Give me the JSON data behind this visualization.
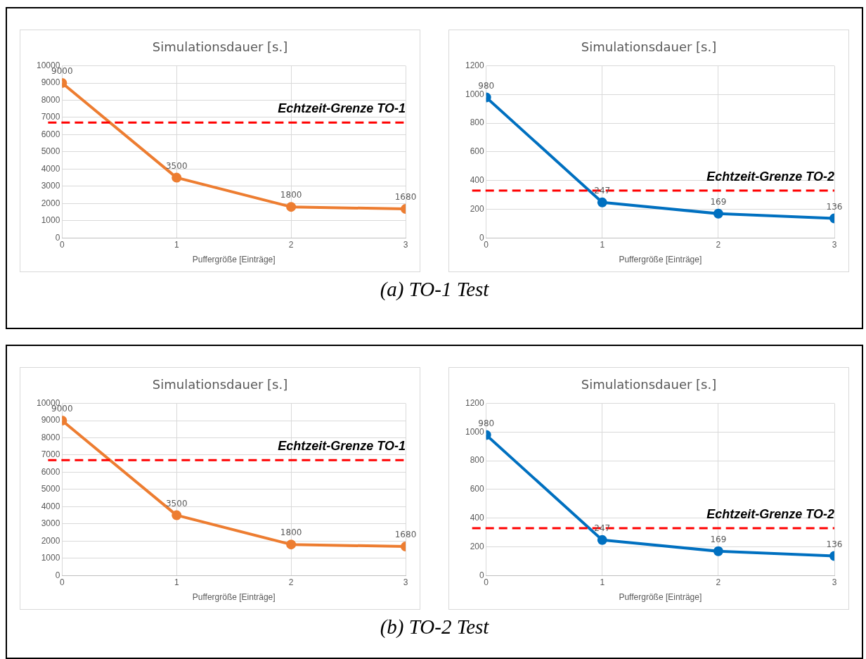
{
  "chart_data": [
    {
      "type": "line",
      "title": "Simulationsdauer [s.]",
      "xlabel": "Puffergröße [Einträge]",
      "x": [
        0,
        1,
        2,
        3
      ],
      "xlim": [
        0,
        3
      ],
      "xticks": [
        0,
        1,
        2,
        3
      ],
      "ylim": [
        0,
        10000
      ],
      "yticks": [
        0,
        1000,
        2000,
        3000,
        4000,
        5000,
        6000,
        7000,
        8000,
        9000,
        10000
      ],
      "grid": true,
      "marker": "circle",
      "data_labels": true,
      "series": [
        {
          "color": "#ed7d31",
          "values": [
            9000,
            3500,
            1800,
            1680
          ]
        }
      ],
      "ref_lines": [
        {
          "axis": "y",
          "value": 6700,
          "label": "Echtzeit-Grenze TO-1",
          "color": "#ff0000",
          "line_style": "dashed"
        }
      ],
      "annotations": [
        "(a) TO-1 Test"
      ]
    },
    {
      "type": "line",
      "title": "Simulationsdauer [s.]",
      "xlabel": "Puffergröße [Einträge]",
      "x": [
        0,
        1,
        2,
        3
      ],
      "xlim": [
        0,
        3
      ],
      "xticks": [
        0,
        1,
        2,
        3
      ],
      "ylim": [
        0,
        1200
      ],
      "yticks": [
        0,
        200,
        400,
        600,
        800,
        1000,
        1200
      ],
      "grid": true,
      "marker": "circle",
      "data_labels": true,
      "series": [
        {
          "color": "#0070c0",
          "values": [
            980,
            247,
            169,
            136
          ]
        }
      ],
      "ref_lines": [
        {
          "axis": "y",
          "value": 330,
          "label": "Echtzeit-Grenze TO-2",
          "color": "#ff0000",
          "line_style": "dashed"
        }
      ]
    },
    {
      "type": "line",
      "title": "Simulationsdauer [s.]",
      "xlabel": "Puffergröße [Einträge]",
      "x": [
        0,
        1,
        2,
        3
      ],
      "xlim": [
        0,
        3
      ],
      "xticks": [
        0,
        1,
        2,
        3
      ],
      "ylim": [
        0,
        10000
      ],
      "yticks": [
        0,
        1000,
        2000,
        3000,
        4000,
        5000,
        6000,
        7000,
        8000,
        9000,
        10000
      ],
      "grid": true,
      "marker": "circle",
      "data_labels": true,
      "series": [
        {
          "color": "#ed7d31",
          "values": [
            9000,
            3500,
            1800,
            1680
          ]
        }
      ],
      "ref_lines": [
        {
          "axis": "y",
          "value": 6700,
          "label": "Echtzeit-Grenze TO-1",
          "color": "#ff0000",
          "line_style": "dashed"
        }
      ],
      "annotations": [
        "(b) TO-2 Test"
      ]
    },
    {
      "type": "line",
      "title": "Simulationsdauer [s.]",
      "xlabel": "Puffergröße [Einträge]",
      "x": [
        0,
        1,
        2,
        3
      ],
      "xlim": [
        0,
        3
      ],
      "xticks": [
        0,
        1,
        2,
        3
      ],
      "ylim": [
        0,
        1200
      ],
      "yticks": [
        0,
        200,
        400,
        600,
        800,
        1000,
        1200
      ],
      "grid": true,
      "marker": "circle",
      "data_labels": true,
      "series": [
        {
          "color": "#0070c0",
          "values": [
            980,
            247,
            169,
            136
          ]
        }
      ],
      "ref_lines": [
        {
          "axis": "y",
          "value": 330,
          "label": "Echtzeit-Grenze TO-2",
          "color": "#ff0000",
          "line_style": "dashed"
        }
      ]
    }
  ]
}
